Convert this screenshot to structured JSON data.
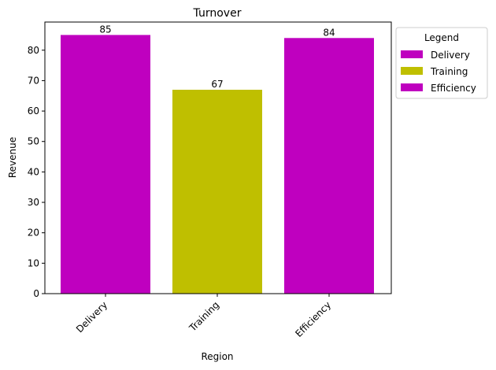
{
  "chart_data": {
    "type": "bar",
    "title": "Turnover",
    "xlabel": "Region",
    "ylabel": "Revenue",
    "categories": [
      "Delivery",
      "Training",
      "Efficiency"
    ],
    "values": [
      85,
      67,
      84
    ],
    "colors": [
      "#bf00bf",
      "#bfbf00",
      "#bf00bf"
    ],
    "ylim": [
      0,
      89.25
    ],
    "yticks": [
      0,
      10,
      20,
      30,
      40,
      50,
      60,
      70,
      80
    ],
    "grid": false,
    "legend": {
      "title": "Legend",
      "placement": "outside-top-right",
      "entries": [
        {
          "label": "Delivery",
          "color": "#bf00bf"
        },
        {
          "label": "Training",
          "color": "#bfbf00"
        },
        {
          "label": "Efficiency",
          "color": "#bf00bf"
        }
      ]
    }
  }
}
